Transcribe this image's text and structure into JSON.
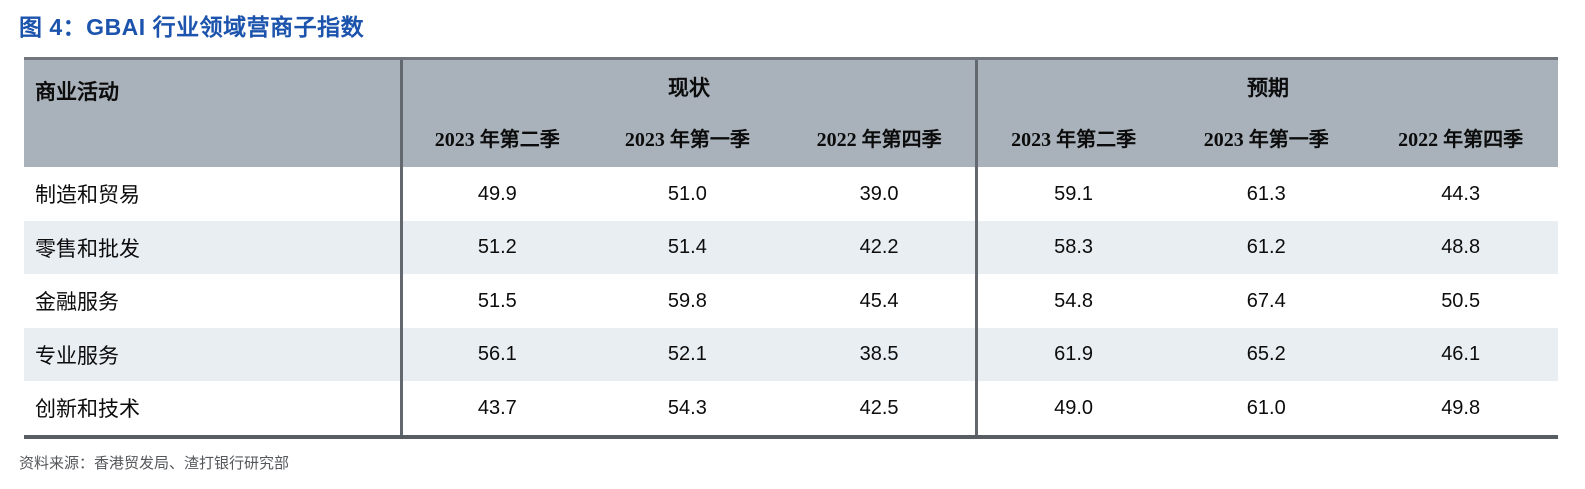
{
  "title": "图 4：GBAI 行业领域营商子指数",
  "table": {
    "corner_header": "商业活动",
    "group_current": "现状",
    "group_expected": "预期",
    "quarters": [
      "2023 年第二季",
      "2023 年第一季",
      "2022 年第四季",
      "2023 年第二季",
      "2023 年第一季",
      "2022 年第四季"
    ],
    "rows": [
      {
        "label": "制造和贸易",
        "values": [
          "49.9",
          "51.0",
          "39.0",
          "59.1",
          "61.3",
          "44.3"
        ]
      },
      {
        "label": "零售和批发",
        "values": [
          "51.2",
          "51.4",
          "42.2",
          "58.3",
          "61.2",
          "48.8"
        ]
      },
      {
        "label": "金融服务",
        "values": [
          "51.5",
          "59.8",
          "45.4",
          "54.8",
          "67.4",
          "50.5"
        ]
      },
      {
        "label": "专业服务",
        "values": [
          "56.1",
          "52.1",
          "38.5",
          "61.9",
          "65.2",
          "46.1"
        ]
      },
      {
        "label": "创新和技术",
        "values": [
          "43.7",
          "54.3",
          "42.5",
          "49.0",
          "61.0",
          "49.8"
        ]
      }
    ]
  },
  "source": "资料来源：香港贸发局、渣打银行研究部",
  "colors": {
    "title_blue": "#1b53ad",
    "header_bg": "#a9b2bb",
    "alt_row_bg": "#e9eef2",
    "top_border": "#70767c",
    "bottom_border": "#575d62",
    "divider": "#62686e",
    "source_text": "#55575a"
  },
  "chart_data": {
    "type": "table",
    "title": "图 4：GBAI 行业领域营商子指数",
    "column_groups": [
      {
        "label": "现状",
        "columns": [
          "2023 年第二季",
          "2023 年第一季",
          "2022 年第四季"
        ]
      },
      {
        "label": "预期",
        "columns": [
          "2023 年第二季",
          "2023 年第一季",
          "2022 年第四季"
        ]
      }
    ],
    "row_header": "商业活动",
    "rows": [
      {
        "label": "制造和贸易",
        "current": [
          49.9,
          51.0,
          39.0
        ],
        "expected": [
          59.1,
          61.3,
          44.3
        ]
      },
      {
        "label": "零售和批发",
        "current": [
          51.2,
          51.4,
          42.2
        ],
        "expected": [
          58.3,
          61.2,
          48.8
        ]
      },
      {
        "label": "金融服务",
        "current": [
          51.5,
          59.8,
          45.4
        ],
        "expected": [
          54.8,
          67.4,
          50.5
        ]
      },
      {
        "label": "专业服务",
        "current": [
          56.1,
          52.1,
          38.5
        ],
        "expected": [
          61.9,
          65.2,
          46.1
        ]
      },
      {
        "label": "创新和技术",
        "current": [
          43.7,
          54.3,
          42.5
        ],
        "expected": [
          49.0,
          61.0,
          49.8
        ]
      }
    ],
    "source": "资料来源：香港贸发局、渣打银行研究部"
  }
}
